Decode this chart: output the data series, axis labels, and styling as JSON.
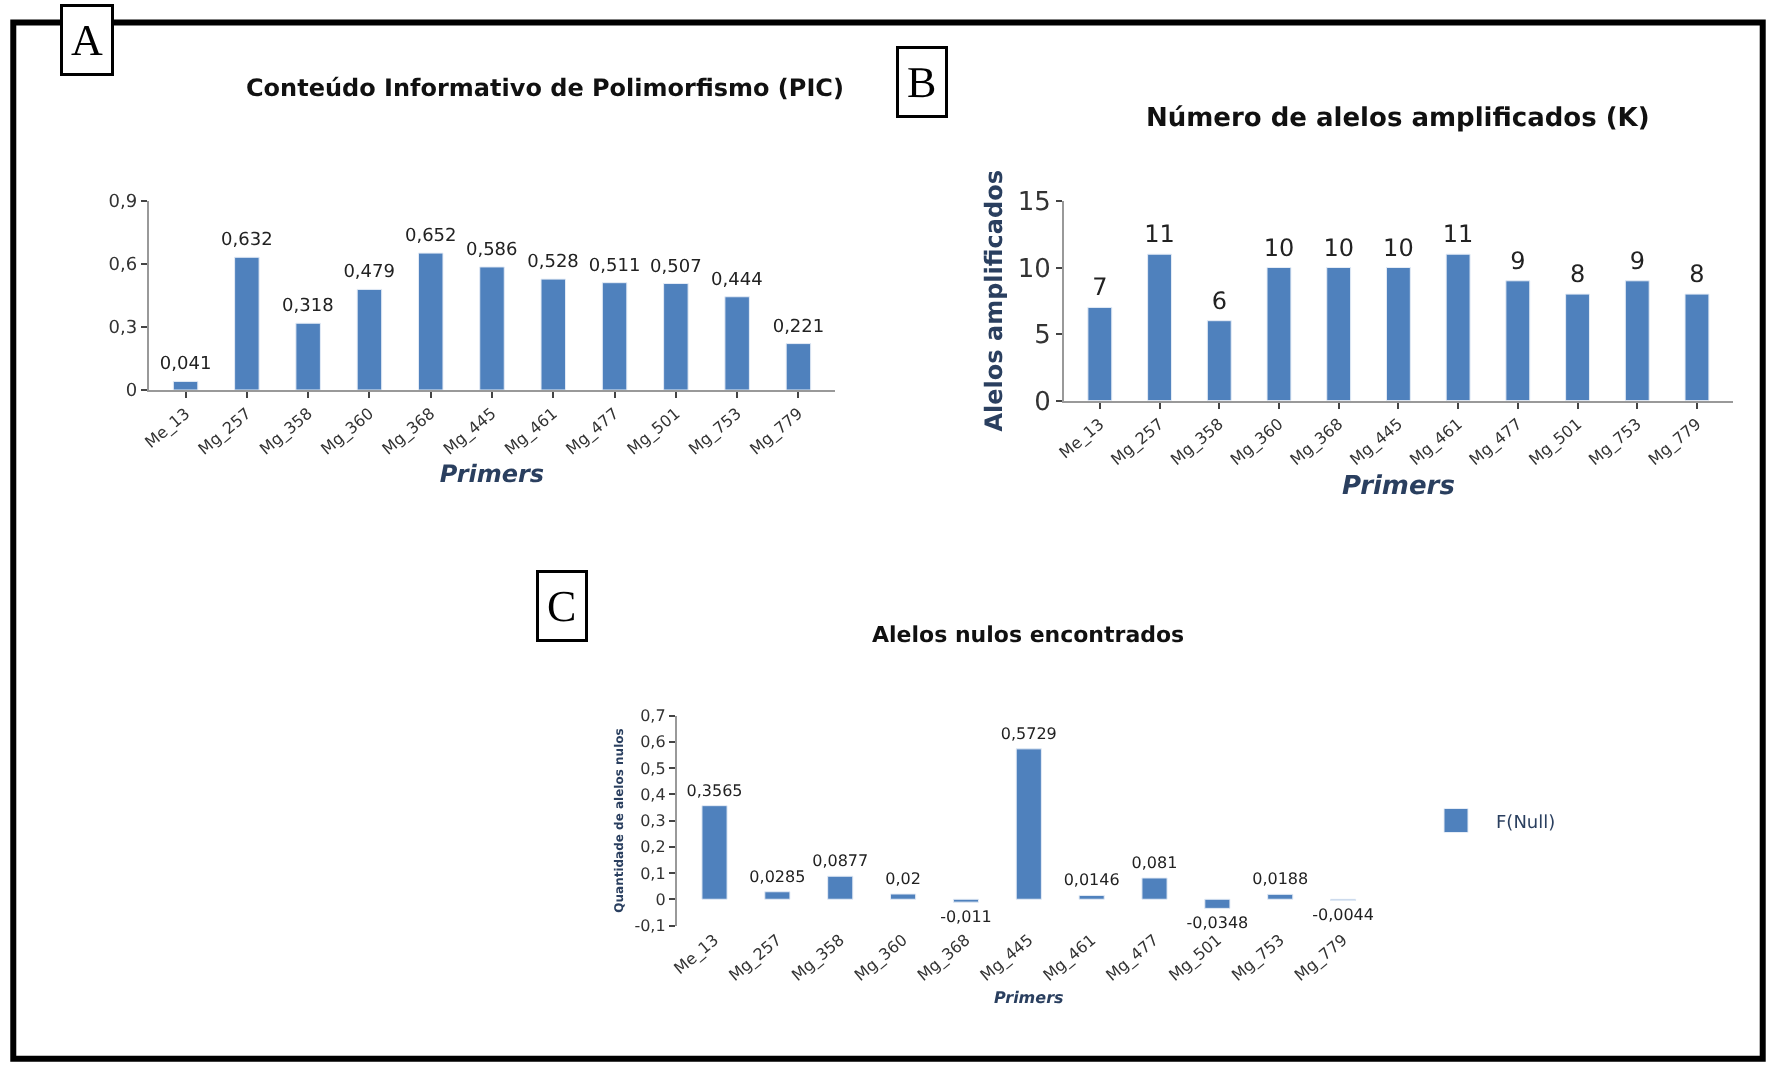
{
  "chart_data": [
    {
      "type": "bar",
      "title": "Conteúdo Informativo de Polimorfismo (PIC)",
      "xlabel": "Primers",
      "annotations": [
        "A"
      ],
      "categories": [
        "Me_13",
        "Mg_257",
        "Mg_358",
        "Mg_360",
        "Mg_368",
        "Mg_445",
        "Mg_461",
        "Mg_477",
        "Mg_501",
        "Mg_753",
        "Mg_779"
      ],
      "values": [
        0.041,
        0.632,
        0.318,
        0.479,
        0.652,
        0.586,
        0.528,
        0.511,
        0.507,
        0.444,
        0.221
      ],
      "value_labels": [
        "0,041",
        "0,632",
        "0,318",
        "0,479",
        "0,652",
        "0,586",
        "0,528",
        "0,511",
        "0,507",
        "0,444",
        "0,221"
      ],
      "color": "#4f81bd",
      "ylim": [
        0,
        0.9
      ],
      "yticks": [
        0,
        {
          "value": 0.3,
          "label": "0,3"
        },
        {
          "value": 0.6,
          "label": "0,6"
        },
        {
          "value": 0.9,
          "label": "0,9"
        }
      ],
      "legend": false
    },
    {
      "type": "bar",
      "title": "Número de alelos amplificados (K)",
      "xlabel": "Primers",
      "ylabel": "Alelos amplificados",
      "annotations": [
        "B"
      ],
      "categories": [
        "Me_13",
        "Mg_257",
        "Mg_358",
        "Mg_360",
        "Mg_368",
        "Mg_445",
        "Mg_461",
        "Mg_477",
        "Mg_501",
        "Mg_753",
        "Mg_779"
      ],
      "values": [
        7,
        11,
        6,
        10,
        10,
        10,
        11,
        9,
        8,
        9,
        8
      ],
      "data_labels": true,
      "color": "#4f81bd",
      "ylim": [
        0,
        15
      ],
      "yticks": [
        0,
        5,
        10,
        15
      ]
    },
    {
      "type": "bar",
      "title": "Alelos nulos encontrados",
      "xlabel": "Primers",
      "ylabel": "Quantidade de alelos nulos",
      "annotations": [
        "C"
      ],
      "categories": [
        "Me_13",
        "Mg_257",
        "Mg_358",
        "Mg_360",
        "Mg_368",
        "Mg_445",
        "Mg_461",
        "Mg_477",
        "Mg_501",
        "Mg_753",
        "Mg_779"
      ],
      "series": [
        {
          "name": "F(Null)",
          "color": "#4f81bd",
          "values": [
            0.3565,
            0.0285,
            0.0877,
            0.02,
            -0.011,
            0.5729,
            0.0146,
            0.081,
            -0.0348,
            0.0188,
            -0.0044
          ],
          "value_labels": [
            "0,3565",
            "0,0285",
            "0,0877",
            "0,02",
            "-0,011",
            "0,5729",
            "0,0146",
            "0,081",
            "-0,0348",
            "0,0188",
            "-0,0044"
          ]
        }
      ],
      "ylim": [
        -0.1,
        0.7
      ],
      "yticks": [
        {
          "value": -0.1,
          "label": "-0,1"
        },
        0,
        {
          "value": 0.1,
          "label": "0,1"
        },
        {
          "value": 0.2,
          "label": "0,2"
        },
        {
          "value": 0.3,
          "label": "0,3"
        },
        {
          "value": 0.4,
          "label": "0,4"
        },
        {
          "value": 0.5,
          "label": "0,5"
        },
        {
          "value": 0.6,
          "label": "0,6"
        },
        {
          "value": 0.7,
          "label": "0,7"
        }
      ],
      "legend": "right"
    }
  ]
}
